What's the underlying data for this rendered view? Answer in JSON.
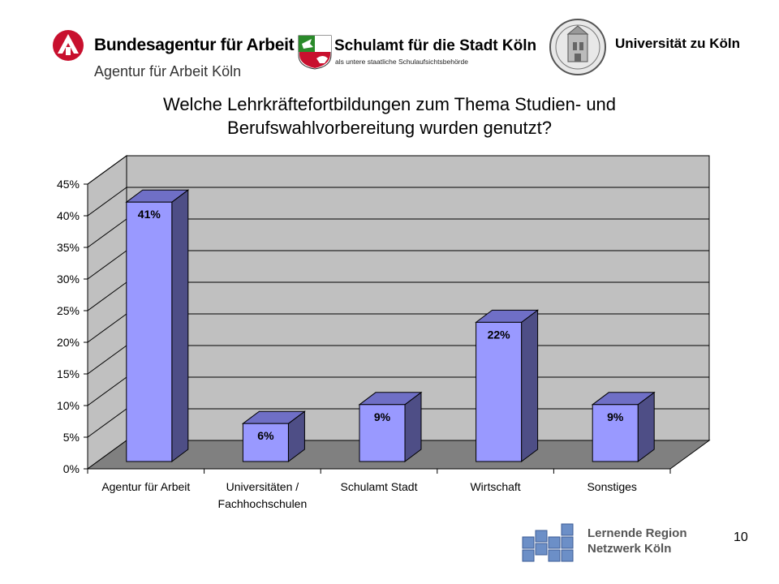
{
  "header": {
    "ba": {
      "name": "Bundesagentur für Arbeit",
      "sub": "Agentur für Arbeit Köln",
      "mark_color": "#c8102e"
    },
    "schulamt": {
      "name": "Schulamt für die Stadt Köln",
      "sub": "als untere staatliche Schulaufsichtsbehörde"
    },
    "uni": {
      "name": "Universität zu Köln"
    }
  },
  "chart_data": {
    "type": "bar",
    "title_lines": [
      "Welche Lehrkräftefortbildungen zum Thema Studien- und",
      "Berufswahlvorbereitung wurden genutzt?"
    ],
    "categories": [
      [
        "Agentur für Arbeit"
      ],
      [
        "Universitäten /",
        "Fachhochschulen"
      ],
      [
        "Schulamt Stadt"
      ],
      [
        "Wirtschaft"
      ],
      [
        "Sonstiges"
      ]
    ],
    "values": [
      41,
      6,
      9,
      22,
      9
    ],
    "data_labels": [
      "41%",
      "6%",
      "9%",
      "22%",
      "9%"
    ],
    "yticks": [
      "0%",
      "5%",
      "10%",
      "15%",
      "20%",
      "25%",
      "30%",
      "35%",
      "40%",
      "45%"
    ],
    "ylim": [
      0,
      45
    ],
    "grid": true,
    "bar_color": "#9999ff",
    "bar_side_color": "#4e4e86",
    "bar_top_color": "#6f6fc6",
    "wall_color": "#c0c0c0",
    "floor_color": "#808080"
  },
  "footer": {
    "logo_line1": "Lernende Region",
    "logo_line2": "Netzwerk Köln",
    "page_number": "10"
  }
}
